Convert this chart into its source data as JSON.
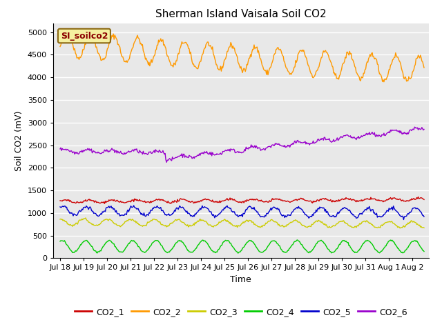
{
  "title": "Sherman Island Vaisala Soil CO2",
  "ylabel": "Soil CO2 (mV)",
  "xlabel": "Time",
  "inner_label": "SI_soilco2",
  "ylim": [
    0,
    5200
  ],
  "yticks": [
    0,
    500,
    1000,
    1500,
    2000,
    2500,
    3000,
    3500,
    4000,
    4500,
    5000
  ],
  "colors": {
    "CO2_1": "#cc0000",
    "CO2_2": "#ff9900",
    "CO2_3": "#cccc00",
    "CO2_4": "#00cc00",
    "CO2_5": "#0000cc",
    "CO2_6": "#9900cc"
  },
  "background_color": "#e8e8e8",
  "n_points": 500,
  "title_fontsize": 11,
  "axis_label_fontsize": 9,
  "tick_fontsize": 8,
  "legend_fontsize": 9
}
